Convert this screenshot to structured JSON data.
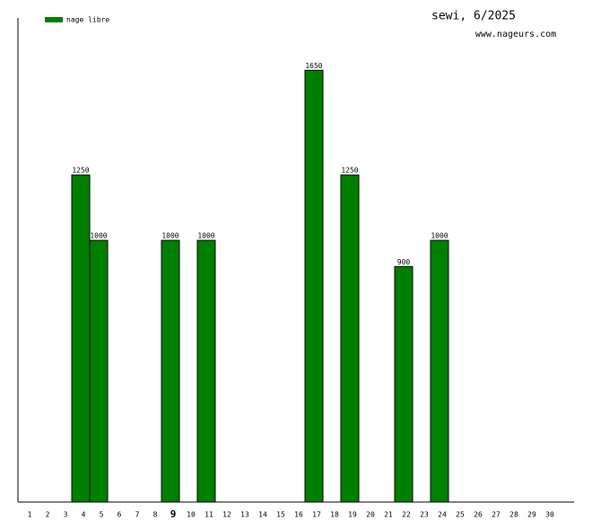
{
  "chart_data": {
    "type": "bar",
    "title": "sewi, 6/2025",
    "subtitle": "www.nageurs.com",
    "categories": [
      "1",
      "2",
      "3",
      "4",
      "5",
      "6",
      "7",
      "8",
      "9",
      "10",
      "11",
      "12",
      "13",
      "14",
      "15",
      "16",
      "17",
      "18",
      "19",
      "20",
      "21",
      "22",
      "23",
      "24",
      "25",
      "26",
      "27",
      "28",
      "29",
      "30"
    ],
    "series": [
      {
        "name": "nage libre",
        "color": "#008000",
        "values": [
          null,
          null,
          null,
          1250,
          1000,
          null,
          null,
          null,
          1000,
          null,
          1000,
          null,
          null,
          null,
          null,
          null,
          1650,
          null,
          1250,
          null,
          null,
          900,
          null,
          1000,
          null,
          null,
          null,
          null,
          null,
          null
        ]
      }
    ],
    "ylim": [
      0,
      1850
    ],
    "highlight": "9"
  }
}
